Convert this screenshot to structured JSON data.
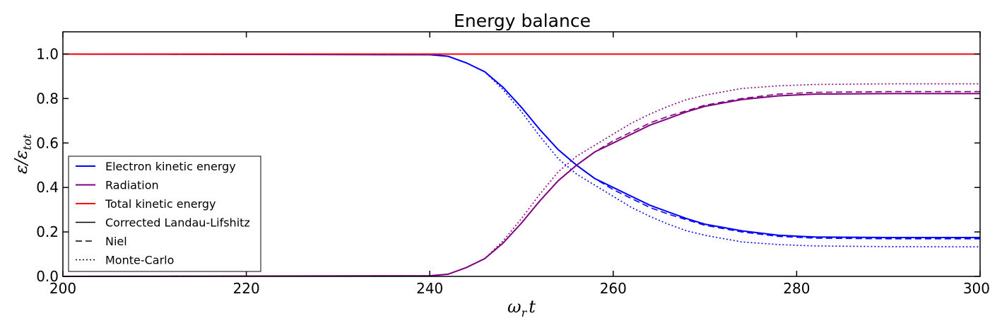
{
  "chart_data": {
    "type": "line",
    "title": "Energy balance",
    "xlabel": "ωr t",
    "ylabel": "ε/εtot",
    "xlim": [
      200,
      300
    ],
    "ylim": [
      0,
      1.1
    ],
    "xticks": [
      200,
      220,
      240,
      260,
      280,
      300
    ],
    "xtick_labels": [
      "200",
      "220",
      "240",
      "260",
      "280",
      "300"
    ],
    "yticks": [
      0.0,
      0.2,
      0.4,
      0.6,
      0.8,
      1.0
    ],
    "ytick_labels": [
      "0.0",
      "0.2",
      "0.4",
      "0.6",
      "0.8",
      "1.0"
    ],
    "grid": false,
    "legend_position": "lower-left",
    "x": [
      200,
      240,
      242,
      244,
      246,
      248,
      250,
      252,
      254,
      256,
      258,
      260,
      262,
      264,
      266,
      268,
      270,
      274,
      278,
      282,
      290,
      300
    ],
    "series": [
      {
        "group": "Electron kinetic energy",
        "style": "Corrected Landau-Lifshitz",
        "color": "#0000ff",
        "dash": "solid",
        "values": [
          1.0,
          0.997,
          0.99,
          0.96,
          0.92,
          0.85,
          0.76,
          0.66,
          0.57,
          0.5,
          0.44,
          0.4,
          0.36,
          0.32,
          0.29,
          0.26,
          0.235,
          0.205,
          0.185,
          0.177,
          0.175,
          0.175
        ]
      },
      {
        "group": "Electron kinetic energy",
        "style": "Niel",
        "color": "#0000ff",
        "dash": "dashed",
        "values": [
          1.0,
          0.997,
          0.99,
          0.96,
          0.92,
          0.85,
          0.76,
          0.66,
          0.57,
          0.5,
          0.44,
          0.39,
          0.35,
          0.31,
          0.28,
          0.255,
          0.23,
          0.2,
          0.18,
          0.172,
          0.169,
          0.169
        ]
      },
      {
        "group": "Electron kinetic energy",
        "style": "Monte-Carlo",
        "color": "#0000ff",
        "dash": "dotted",
        "values": [
          1.0,
          0.997,
          0.99,
          0.96,
          0.92,
          0.84,
          0.74,
          0.63,
          0.53,
          0.46,
          0.41,
          0.36,
          0.31,
          0.27,
          0.235,
          0.205,
          0.185,
          0.155,
          0.143,
          0.137,
          0.134,
          0.133
        ]
      },
      {
        "group": "Radiation",
        "style": "Corrected Landau-Lifshitz",
        "color": "#800080",
        "dash": "solid",
        "values": [
          0.0,
          0.003,
          0.01,
          0.04,
          0.08,
          0.15,
          0.24,
          0.34,
          0.43,
          0.5,
          0.56,
          0.6,
          0.64,
          0.68,
          0.71,
          0.74,
          0.765,
          0.795,
          0.812,
          0.82,
          0.822,
          0.822
        ]
      },
      {
        "group": "Radiation",
        "style": "Niel",
        "color": "#800080",
        "dash": "dashed",
        "values": [
          0.0,
          0.003,
          0.01,
          0.04,
          0.08,
          0.15,
          0.24,
          0.34,
          0.43,
          0.5,
          0.56,
          0.61,
          0.65,
          0.69,
          0.72,
          0.745,
          0.77,
          0.8,
          0.82,
          0.828,
          0.831,
          0.831
        ]
      },
      {
        "group": "Radiation",
        "style": "Monte-Carlo",
        "color": "#800080",
        "dash": "dotted",
        "values": [
          0.0,
          0.003,
          0.01,
          0.04,
          0.08,
          0.16,
          0.26,
          0.37,
          0.47,
          0.54,
          0.59,
          0.64,
          0.69,
          0.73,
          0.765,
          0.795,
          0.815,
          0.845,
          0.857,
          0.863,
          0.866,
          0.866
        ]
      },
      {
        "group": "Total kinetic energy",
        "style": "Corrected Landau-Lifshitz",
        "color": "#ff0000",
        "dash": "solid",
        "values": [
          1.0,
          1.0,
          1.0,
          1.0,
          1.0,
          1.0,
          1.0,
          1.0,
          1.0,
          1.0,
          1.0,
          1.0,
          1.0,
          1.0,
          1.0,
          1.0,
          1.0,
          1.0,
          1.0,
          1.0,
          1.0,
          1.0
        ]
      },
      {
        "group": "Total kinetic energy",
        "style": "Niel",
        "color": "#ff0000",
        "dash": "dashed",
        "values": [
          1.0,
          1.0,
          1.0,
          1.0,
          1.0,
          1.0,
          1.0,
          1.0,
          1.0,
          1.0,
          1.0,
          1.0,
          1.0,
          1.0,
          1.0,
          1.0,
          1.0,
          1.0,
          1.0,
          1.0,
          1.0,
          1.0
        ]
      },
      {
        "group": "Total kinetic energy",
        "style": "Monte-Carlo",
        "color": "#ff0000",
        "dash": "dotted",
        "values": [
          1.0,
          1.0,
          1.0,
          1.0,
          1.0,
          1.0,
          1.0,
          1.0,
          1.0,
          1.0,
          1.0,
          1.0,
          1.0,
          1.0,
          1.0,
          1.0,
          1.0,
          1.0,
          1.0,
          1.0,
          1.0,
          1.0
        ]
      }
    ],
    "legend": [
      {
        "label": "Electron kinetic energy",
        "color": "#0000ff",
        "dash": "solid"
      },
      {
        "label": "Radiation",
        "color": "#800080",
        "dash": "solid"
      },
      {
        "label": "Total kinetic energy",
        "color": "#ff0000",
        "dash": "solid"
      },
      {
        "label": "Corrected Landau-Lifshitz",
        "color": "#000000",
        "dash": "solid"
      },
      {
        "label": "Niel",
        "color": "#000000",
        "dash": "dashed"
      },
      {
        "label": "Monte-Carlo",
        "color": "#000000",
        "dash": "dotted"
      }
    ]
  }
}
